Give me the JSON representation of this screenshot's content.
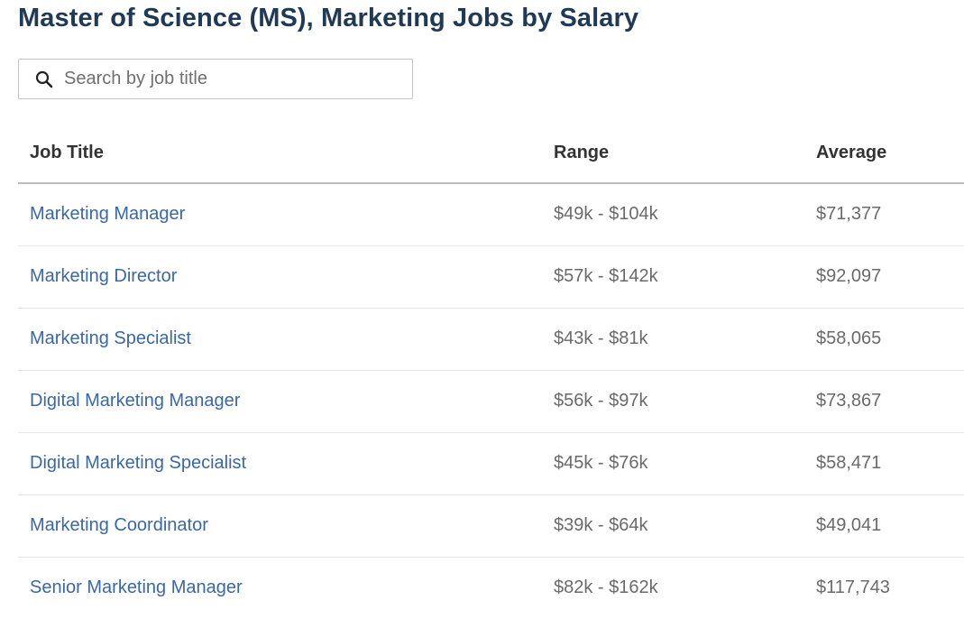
{
  "page": {
    "title": "Master of Science (MS), Marketing Jobs by Salary"
  },
  "search": {
    "placeholder": "Search by job title",
    "value": ""
  },
  "table": {
    "headers": {
      "job_title": "Job Title",
      "range": "Range",
      "average": "Average"
    },
    "rows": [
      {
        "job_title": "Marketing Manager",
        "range": "$49k - $104k",
        "average": "$71,377"
      },
      {
        "job_title": "Marketing Director",
        "range": "$57k - $142k",
        "average": "$92,097"
      },
      {
        "job_title": "Marketing Specialist",
        "range": "$43k - $81k",
        "average": "$58,065"
      },
      {
        "job_title": "Digital Marketing Manager",
        "range": "$56k - $97k",
        "average": "$73,867"
      },
      {
        "job_title": "Digital Marketing Specialist",
        "range": "$45k - $76k",
        "average": "$58,471"
      },
      {
        "job_title": "Marketing Coordinator",
        "range": "$39k - $64k",
        "average": "$49,041"
      },
      {
        "job_title": "Senior Marketing Manager",
        "range": "$82k - $162k",
        "average": "$117,743"
      }
    ]
  },
  "colors": {
    "title": "#1f3a57",
    "link": "#3a67a8",
    "muted_text": "#6a6a6a"
  },
  "icons": {
    "search": "search-icon"
  }
}
